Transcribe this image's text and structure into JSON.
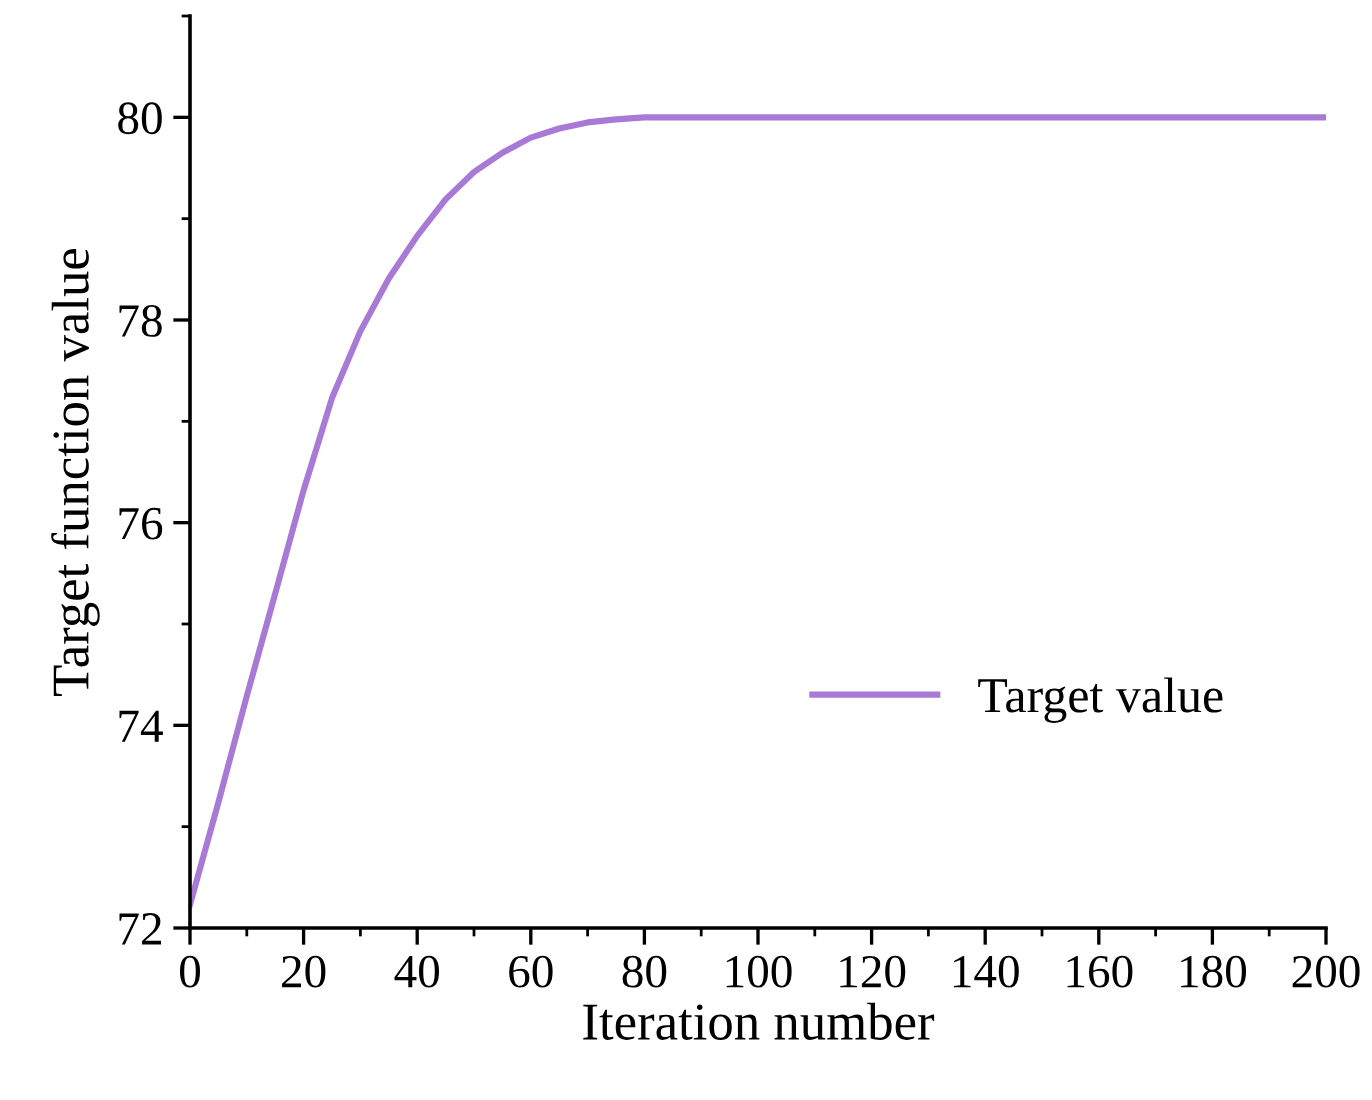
{
  "chart_data": {
    "type": "line",
    "xlabel": "Iteration number",
    "ylabel": "Target function value",
    "x": [
      0,
      5,
      10,
      15,
      20,
      25,
      30,
      35,
      40,
      45,
      50,
      55,
      60,
      65,
      70,
      75,
      80,
      90,
      100,
      120,
      140,
      160,
      180,
      200
    ],
    "series": [
      {
        "name": "Target value",
        "color": "#a87ad6",
        "values": [
          72.23,
          73.24,
          74.29,
          75.3,
          76.32,
          77.23,
          77.89,
          78.41,
          78.83,
          79.19,
          79.46,
          79.65,
          79.8,
          79.89,
          79.95,
          79.98,
          80.0,
          80.0,
          80.0,
          80.0,
          80.0,
          80.0,
          80.0,
          80.0
        ]
      }
    ],
    "xlim": [
      0,
      200
    ],
    "xticks": [
      0,
      20,
      40,
      60,
      80,
      100,
      120,
      140,
      160,
      180,
      200
    ],
    "ylim": [
      72,
      81
    ],
    "yticks": [
      72,
      74,
      76,
      78,
      80
    ],
    "grid": false,
    "legend": "right",
    "marker": "none",
    "line_style": "solid"
  }
}
